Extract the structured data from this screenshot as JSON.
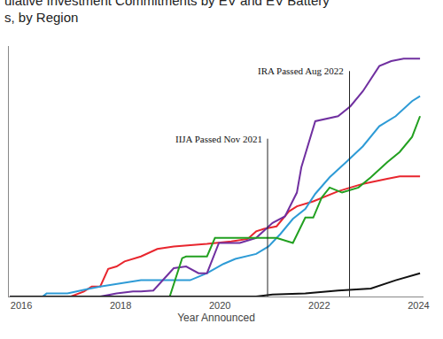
{
  "chart_data": {
    "type": "line",
    "title": "ulative Investment Commitments by EV and EV Battery",
    "subtitle": "s, by Region",
    "x_label": "Year Announced",
    "xlim": [
      2015.75,
      2024.1
    ],
    "xticks": [
      2016,
      2018,
      2020,
      2022,
      2024
    ],
    "ylim": [
      0,
      100
    ],
    "tick_labels": "x",
    "grid": false,
    "line_style": "solid",
    "annotations": [
      {
        "text": "IIJA Passed Nov 2021",
        "x": 2020.96,
        "y": 63
      },
      {
        "text": "IRA Passed Aug 2022",
        "x": 2022.61,
        "y": 90
      }
    ],
    "series": [
      {
        "color": "#e8262e",
        "x": [
          2015.77,
          2017.0,
          2017.26,
          2017.42,
          2017.59,
          2017.75,
          2017.92,
          2018.08,
          2018.41,
          2018.74,
          2019.07,
          2019.74,
          2020.23,
          2020.56,
          2020.73,
          2020.89,
          2021.14,
          2021.39,
          2021.55,
          2021.88,
          2022.38,
          2022.88,
          2023.37,
          2023.62,
          2024.03
        ],
        "values": [
          0,
          0,
          2,
          4,
          4,
          11,
          12,
          14,
          16,
          19,
          20,
          21,
          22,
          23,
          26,
          27,
          28,
          34,
          36,
          38,
          42,
          45,
          47,
          48,
          48
        ]
      },
      {
        "color": "#2e9bd6",
        "x": [
          2015.77,
          2016.43,
          2016.51,
          2016.93,
          2017.34,
          2017.59,
          2018.41,
          2019.4,
          2019.74,
          2020.07,
          2020.31,
          2020.73,
          2020.98,
          2021.22,
          2021.47,
          2021.72,
          2021.92,
          2022.21,
          2022.54,
          2022.88,
          2023.21,
          2023.54,
          2023.87,
          2024.03
        ],
        "values": [
          0,
          0,
          1.2,
          1.2,
          3,
          4,
          6.5,
          6.5,
          9.3,
          13,
          15,
          17,
          20,
          25,
          31,
          35,
          41,
          47.6,
          53.6,
          60,
          68,
          72,
          78,
          80
        ]
      },
      {
        "color": "#7030a0",
        "x": [
          2015.77,
          2017.59,
          2017.92,
          2018.25,
          2018.41,
          2018.66,
          2019.07,
          2019.32,
          2019.57,
          2019.74,
          2019.98,
          2020.4,
          2020.73,
          2021.06,
          2021.31,
          2021.55,
          2021.64,
          2021.92,
          2022.38,
          2022.63,
          2022.88,
          2023.21,
          2023.45,
          2023.7,
          2024.03
        ],
        "values": [
          0,
          0,
          1.2,
          2,
          2,
          2.4,
          11.3,
          12,
          9.3,
          9.3,
          21.4,
          21.4,
          23.4,
          29.4,
          32,
          41.5,
          51.6,
          70,
          72,
          76,
          82,
          92,
          94,
          95,
          95
        ]
      },
      {
        "color": "#22a020",
        "x": [
          2018.99,
          2019.24,
          2019.32,
          2019.74,
          2019.9,
          2021.14,
          2021.47,
          2021.72,
          2021.88,
          2022.05,
          2022.21,
          2022.46,
          2022.79,
          2023.04,
          2023.37,
          2023.62,
          2023.87,
          2024.03
        ],
        "values": [
          0,
          15.3,
          16,
          16,
          23.4,
          23.4,
          21.4,
          31.5,
          31.5,
          39.5,
          43.5,
          41.5,
          43.5,
          47.6,
          53.6,
          57.7,
          63.7,
          72
        ]
      },
      {
        "color": "#111111",
        "x": [
          2015.77,
          2020.73,
          2021.06,
          2021.72,
          2022.38,
          2023.04,
          2023.54,
          2024.03
        ],
        "values": [
          0,
          0,
          0.8,
          1.2,
          2.4,
          3.2,
          6.5,
          9.3
        ]
      }
    ]
  }
}
